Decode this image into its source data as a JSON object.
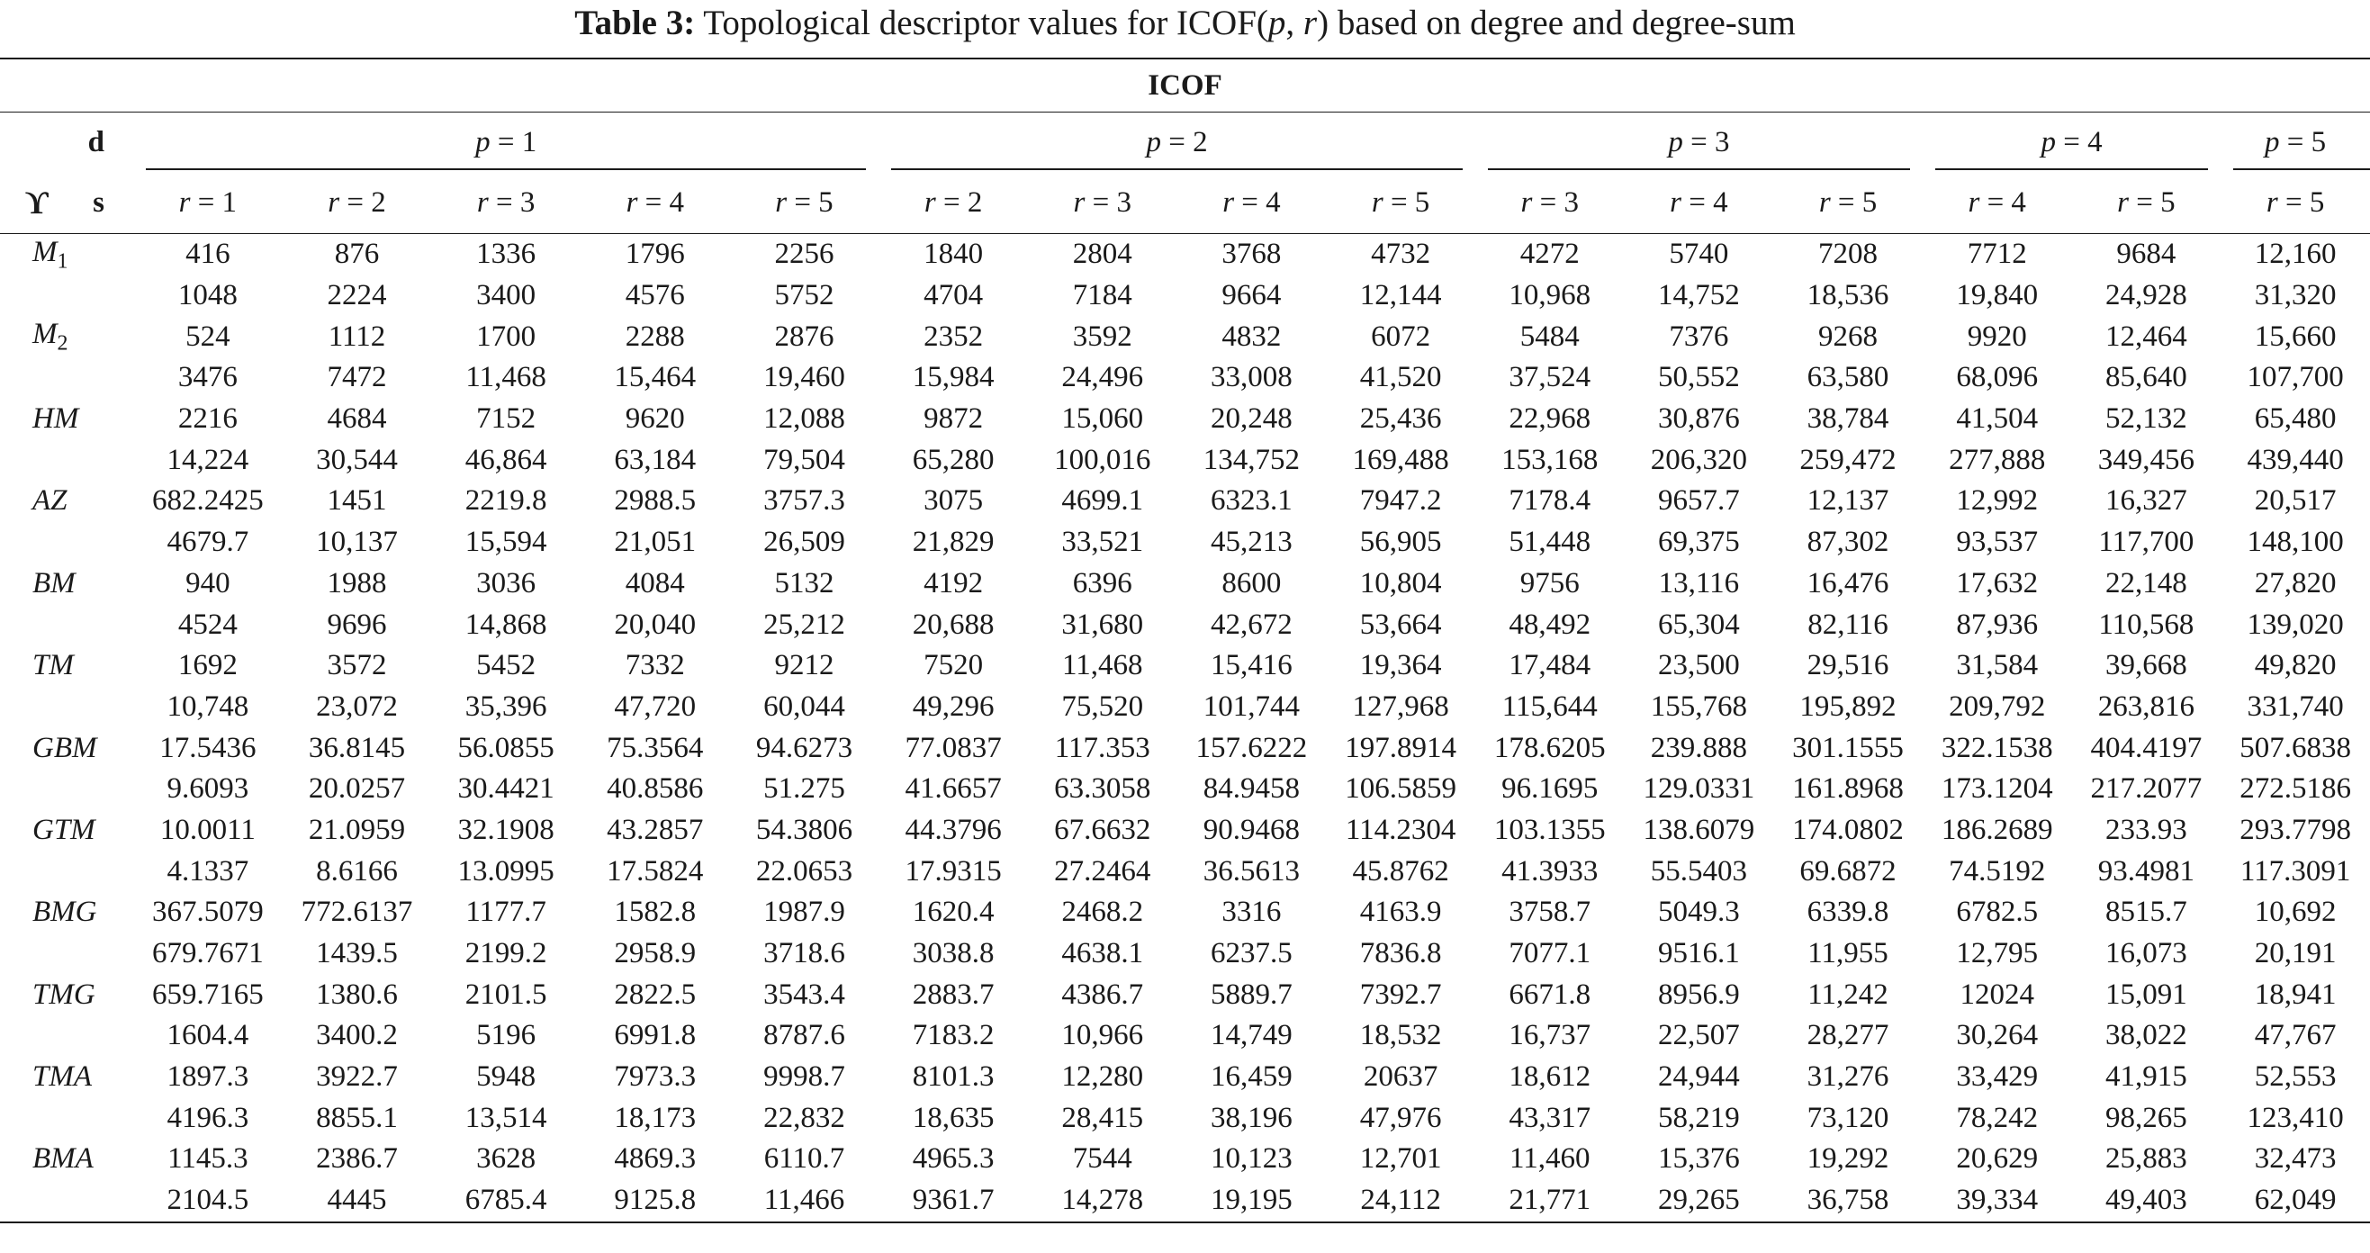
{
  "caption": {
    "label": "Table 3:",
    "text_before": " Topological descriptor values for ICOF(",
    "p": "p",
    "comma": ", ",
    "r": "r",
    "text_after": ") based on degree and degree-sum"
  },
  "header": {
    "group_title": "ICOF",
    "corner_d": "d",
    "corner_s": "s",
    "corner_upsilon": "ϒ",
    "p_groups": [
      {
        "label": "p = 1",
        "span": 5
      },
      {
        "label": "p = 2",
        "span": 4
      },
      {
        "label": "p = 3",
        "span": 3
      },
      {
        "label": "p = 4",
        "span": 2
      },
      {
        "label": "p = 5",
        "span": 1
      }
    ],
    "r_labels": [
      "r = 1",
      "r = 2",
      "r = 3",
      "r = 4",
      "r = 5",
      "r = 2",
      "r = 3",
      "r = 4",
      "r = 5",
      "r = 3",
      "r = 4",
      "r = 5",
      "r = 4",
      "r = 5",
      "r = 5"
    ]
  },
  "rows": [
    {
      "name": "M1",
      "name_base": "M",
      "name_sub": "1",
      "d": [
        "416",
        "876",
        "1336",
        "1796",
        "2256",
        "1840",
        "2804",
        "3768",
        "4732",
        "4272",
        "5740",
        "7208",
        "7712",
        "9684",
        "12,160"
      ],
      "s": [
        "1048",
        "2224",
        "3400",
        "4576",
        "5752",
        "4704",
        "7184",
        "9664",
        "12,144",
        "10,968",
        "14,752",
        "18,536",
        "19,840",
        "24,928",
        "31,320"
      ]
    },
    {
      "name": "M2",
      "name_base": "M",
      "name_sub": "2",
      "d": [
        "524",
        "1112",
        "1700",
        "2288",
        "2876",
        "2352",
        "3592",
        "4832",
        "6072",
        "5484",
        "7376",
        "9268",
        "9920",
        "12,464",
        "15,660"
      ],
      "s": [
        "3476",
        "7472",
        "11,468",
        "15,464",
        "19,460",
        "15,984",
        "24,496",
        "33,008",
        "41,520",
        "37,524",
        "50,552",
        "63,580",
        "68,096",
        "85,640",
        "107,700"
      ]
    },
    {
      "name": "HM",
      "name_base": "HM",
      "name_sub": "",
      "d": [
        "2216",
        "4684",
        "7152",
        "9620",
        "12,088",
        "9872",
        "15,060",
        "20,248",
        "25,436",
        "22,968",
        "30,876",
        "38,784",
        "41,504",
        "52,132",
        "65,480"
      ],
      "s": [
        "14,224",
        "30,544",
        "46,864",
        "63,184",
        "79,504",
        "65,280",
        "100,016",
        "134,752",
        "169,488",
        "153,168",
        "206,320",
        "259,472",
        "277,888",
        "349,456",
        "439,440"
      ]
    },
    {
      "name": "AZ",
      "name_base": "AZ",
      "name_sub": "",
      "d": [
        "682.2425",
        "1451",
        "2219.8",
        "2988.5",
        "3757.3",
        "3075",
        "4699.1",
        "6323.1",
        "7947.2",
        "7178.4",
        "9657.7",
        "12,137",
        "12,992",
        "16,327",
        "20,517"
      ],
      "s": [
        "4679.7",
        "10,137",
        "15,594",
        "21,051",
        "26,509",
        "21,829",
        "33,521",
        "45,213",
        "56,905",
        "51,448",
        "69,375",
        "87,302",
        "93,537",
        "117,700",
        "148,100"
      ]
    },
    {
      "name": "BM",
      "name_base": "BM",
      "name_sub": "",
      "d": [
        "940",
        "1988",
        "3036",
        "4084",
        "5132",
        "4192",
        "6396",
        "8600",
        "10,804",
        "9756",
        "13,116",
        "16,476",
        "17,632",
        "22,148",
        "27,820"
      ],
      "s": [
        "4524",
        "9696",
        "14,868",
        "20,040",
        "25,212",
        "20,688",
        "31,680",
        "42,672",
        "53,664",
        "48,492",
        "65,304",
        "82,116",
        "87,936",
        "110,568",
        "139,020"
      ]
    },
    {
      "name": "TM",
      "name_base": "TM",
      "name_sub": "",
      "d": [
        "1692",
        "3572",
        "5452",
        "7332",
        "9212",
        "7520",
        "11,468",
        "15,416",
        "19,364",
        "17,484",
        "23,500",
        "29,516",
        "31,584",
        "39,668",
        "49,820"
      ],
      "s": [
        "10,748",
        "23,072",
        "35,396",
        "47,720",
        "60,044",
        "49,296",
        "75,520",
        "101,744",
        "127,968",
        "115,644",
        "155,768",
        "195,892",
        "209,792",
        "263,816",
        "331,740"
      ]
    },
    {
      "name": "GBM",
      "name_base": "GBM",
      "name_sub": "",
      "d": [
        "17.5436",
        "36.8145",
        "56.0855",
        "75.3564",
        "94.6273",
        "77.0837",
        "117.353",
        "157.6222",
        "197.8914",
        "178.6205",
        "239.888",
        "301.1555",
        "322.1538",
        "404.4197",
        "507.6838"
      ],
      "s": [
        "9.6093",
        "20.0257",
        "30.4421",
        "40.8586",
        "51.275",
        "41.6657",
        "63.3058",
        "84.9458",
        "106.5859",
        "96.1695",
        "129.0331",
        "161.8968",
        "173.1204",
        "217.2077",
        "272.5186"
      ]
    },
    {
      "name": "GTM",
      "name_base": "GTM",
      "name_sub": "",
      "d": [
        "10.0011",
        "21.0959",
        "32.1908",
        "43.2857",
        "54.3806",
        "44.3796",
        "67.6632",
        "90.9468",
        "114.2304",
        "103.1355",
        "138.6079",
        "174.0802",
        "186.2689",
        "233.93",
        "293.7798"
      ],
      "s": [
        "4.1337",
        "8.6166",
        "13.0995",
        "17.5824",
        "22.0653",
        "17.9315",
        "27.2464",
        "36.5613",
        "45.8762",
        "41.3933",
        "55.5403",
        "69.6872",
        "74.5192",
        "93.4981",
        "117.3091"
      ]
    },
    {
      "name": "BMG",
      "name_base": "BMG",
      "name_sub": "",
      "d": [
        "367.5079",
        "772.6137",
        "1177.7",
        "1582.8",
        "1987.9",
        "1620.4",
        "2468.2",
        "3316",
        "4163.9",
        "3758.7",
        "5049.3",
        "6339.8",
        "6782.5",
        "8515.7",
        "10,692"
      ],
      "s": [
        "679.7671",
        "1439.5",
        "2199.2",
        "2958.9",
        "3718.6",
        "3038.8",
        "4638.1",
        "6237.5",
        "7836.8",
        "7077.1",
        "9516.1",
        "11,955",
        "12,795",
        "16,073",
        "20,191"
      ]
    },
    {
      "name": "TMG",
      "name_base": "TMG",
      "name_sub": "",
      "d": [
        "659.7165",
        "1380.6",
        "2101.5",
        "2822.5",
        "3543.4",
        "2883.7",
        "4386.7",
        "5889.7",
        "7392.7",
        "6671.8",
        "8956.9",
        "11,242",
        "12024",
        "15,091",
        "18,941"
      ],
      "s": [
        "1604.4",
        "3400.2",
        "5196",
        "6991.8",
        "8787.6",
        "7183.2",
        "10,966",
        "14,749",
        "18,532",
        "16,737",
        "22,507",
        "28,277",
        "30,264",
        "38,022",
        "47,767"
      ]
    },
    {
      "name": "TMA",
      "name_base": "TMA",
      "name_sub": "",
      "d": [
        "1897.3",
        "3922.7",
        "5948",
        "7973.3",
        "9998.7",
        "8101.3",
        "12,280",
        "16,459",
        "20637",
        "18,612",
        "24,944",
        "31,276",
        "33,429",
        "41,915",
        "52,553"
      ],
      "s": [
        "4196.3",
        "8855.1",
        "13,514",
        "18,173",
        "22,832",
        "18,635",
        "28,415",
        "38,196",
        "47,976",
        "43,317",
        "58,219",
        "73,120",
        "78,242",
        "98,265",
        "123,410"
      ]
    },
    {
      "name": "BMA",
      "name_base": "BMA",
      "name_sub": "",
      "d": [
        "1145.3",
        "2386.7",
        "3628",
        "4869.3",
        "6110.7",
        "4965.3",
        "7544",
        "10,123",
        "12,701",
        "11,460",
        "15,376",
        "19,292",
        "20,629",
        "25,883",
        "32,473"
      ],
      "s": [
        "2104.5",
        "4445",
        "6785.4",
        "9125.8",
        "11,466",
        "9361.7",
        "14,278",
        "19,195",
        "24,112",
        "21,771",
        "29,265",
        "36,758",
        "39,334",
        "49,403",
        "62,049"
      ]
    }
  ]
}
